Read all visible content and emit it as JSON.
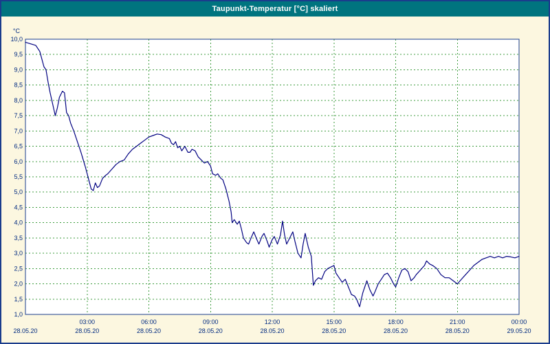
{
  "window": {
    "title": "Taupunkt-Temperatur [°C] skaliert",
    "titlebar_color": "#00747f",
    "background_color": "#fcf7e0",
    "border_color": "#1a3c8c"
  },
  "chart_data": {
    "type": "line",
    "title": "Taupunkt-Temperatur [°C] skaliert",
    "xlabel": "",
    "ylabel": "°C",
    "ylim": [
      1.0,
      10.0
    ],
    "ytick_step": 0.5,
    "yticks": [
      {
        "value": 10.0,
        "label": "10,0"
      },
      {
        "value": 9.5,
        "label": "9,5"
      },
      {
        "value": 9.0,
        "label": "9,0"
      },
      {
        "value": 8.5,
        "label": "8,5"
      },
      {
        "value": 8.0,
        "label": "8,0"
      },
      {
        "value": 7.5,
        "label": "7,5"
      },
      {
        "value": 7.0,
        "label": "7,0"
      },
      {
        "value": 6.5,
        "label": "6,5"
      },
      {
        "value": 6.0,
        "label": "6,0"
      },
      {
        "value": 5.5,
        "label": "5,5"
      },
      {
        "value": 5.0,
        "label": "5,0"
      },
      {
        "value": 4.5,
        "label": "4,5"
      },
      {
        "value": 4.0,
        "label": "4,0"
      },
      {
        "value": 3.5,
        "label": "3,5"
      },
      {
        "value": 3.0,
        "label": "3,0"
      },
      {
        "value": 2.5,
        "label": "2,5"
      },
      {
        "value": 2.0,
        "label": "2,0"
      },
      {
        "value": 1.5,
        "label": "1,5"
      },
      {
        "value": 1.0,
        "label": "1,0"
      }
    ],
    "xlim_hours": [
      0,
      24
    ],
    "xticks": [
      {
        "hour": 0,
        "time": "",
        "date": "28.05.20"
      },
      {
        "hour": 3,
        "time": "03:00",
        "date": "28.05.20"
      },
      {
        "hour": 6,
        "time": "06:00",
        "date": "28.05.20"
      },
      {
        "hour": 9,
        "time": "09:00",
        "date": "28.05.20"
      },
      {
        "hour": 12,
        "time": "12:00",
        "date": "28.05.20"
      },
      {
        "hour": 15,
        "time": "15:00",
        "date": "28.05.20"
      },
      {
        "hour": 18,
        "time": "18:00",
        "date": "28.05.20"
      },
      {
        "hour": 21,
        "time": "21:00",
        "date": "28.05.20"
      },
      {
        "hour": 24,
        "time": "00:00",
        "date": "29.05.20"
      }
    ],
    "grid": true,
    "legend": "none",
    "line_color": "#000080",
    "grid_color": "#3c9b3c",
    "axis_color": "#1a3c8c",
    "tick_text_color": "#002a80",
    "plot_background": "#ffffff",
    "series": [
      {
        "name": "Taupunkt-Temperatur",
        "unit": "°C",
        "points": [
          [
            0,
            9.9
          ],
          [
            0.25,
            9.85
          ],
          [
            0.5,
            9.8
          ],
          [
            0.7,
            9.6
          ],
          [
            0.9,
            9.1
          ],
          [
            1.0,
            9.0
          ],
          [
            1.1,
            8.6
          ],
          [
            1.2,
            8.25
          ],
          [
            1.35,
            7.8
          ],
          [
            1.45,
            7.5
          ],
          [
            1.55,
            7.75
          ],
          [
            1.65,
            8.1
          ],
          [
            1.8,
            8.3
          ],
          [
            1.9,
            8.25
          ],
          [
            2.0,
            7.6
          ],
          [
            2.1,
            7.5
          ],
          [
            2.2,
            7.25
          ],
          [
            2.35,
            7.0
          ],
          [
            2.5,
            6.7
          ],
          [
            2.7,
            6.3
          ],
          [
            2.9,
            5.85
          ],
          [
            3.0,
            5.6
          ],
          [
            3.1,
            5.35
          ],
          [
            3.2,
            5.1
          ],
          [
            3.3,
            5.05
          ],
          [
            3.4,
            5.3
          ],
          [
            3.5,
            5.15
          ],
          [
            3.6,
            5.2
          ],
          [
            3.75,
            5.45
          ],
          [
            3.9,
            5.55
          ],
          [
            4.0,
            5.6
          ],
          [
            4.2,
            5.75
          ],
          [
            4.4,
            5.9
          ],
          [
            4.6,
            6.0
          ],
          [
            4.8,
            6.05
          ],
          [
            5.0,
            6.25
          ],
          [
            5.2,
            6.4
          ],
          [
            5.4,
            6.5
          ],
          [
            5.6,
            6.6
          ],
          [
            5.8,
            6.7
          ],
          [
            6.0,
            6.8
          ],
          [
            6.2,
            6.85
          ],
          [
            6.4,
            6.9
          ],
          [
            6.6,
            6.88
          ],
          [
            6.8,
            6.8
          ],
          [
            7.0,
            6.75
          ],
          [
            7.1,
            6.6
          ],
          [
            7.2,
            6.55
          ],
          [
            7.3,
            6.65
          ],
          [
            7.4,
            6.45
          ],
          [
            7.5,
            6.5
          ],
          [
            7.6,
            6.35
          ],
          [
            7.75,
            6.5
          ],
          [
            7.9,
            6.3
          ],
          [
            8.0,
            6.3
          ],
          [
            8.1,
            6.4
          ],
          [
            8.25,
            6.35
          ],
          [
            8.4,
            6.15
          ],
          [
            8.55,
            6.05
          ],
          [
            8.7,
            5.95
          ],
          [
            8.85,
            6.0
          ],
          [
            9.0,
            5.85
          ],
          [
            9.1,
            5.6
          ],
          [
            9.25,
            5.55
          ],
          [
            9.35,
            5.6
          ],
          [
            9.5,
            5.45
          ],
          [
            9.6,
            5.4
          ],
          [
            9.75,
            5.1
          ],
          [
            9.9,
            4.7
          ],
          [
            10.0,
            4.35
          ],
          [
            10.05,
            4.0
          ],
          [
            10.15,
            4.1
          ],
          [
            10.3,
            3.95
          ],
          [
            10.4,
            4.05
          ],
          [
            10.5,
            3.8
          ],
          [
            10.6,
            3.5
          ],
          [
            10.75,
            3.35
          ],
          [
            10.85,
            3.3
          ],
          [
            11.0,
            3.55
          ],
          [
            11.1,
            3.7
          ],
          [
            11.25,
            3.45
          ],
          [
            11.35,
            3.3
          ],
          [
            11.5,
            3.55
          ],
          [
            11.6,
            3.65
          ],
          [
            11.75,
            3.4
          ],
          [
            11.85,
            3.2
          ],
          [
            12.0,
            3.45
          ],
          [
            12.1,
            3.55
          ],
          [
            12.25,
            3.3
          ],
          [
            12.4,
            3.6
          ],
          [
            12.5,
            4.05
          ],
          [
            12.6,
            3.6
          ],
          [
            12.7,
            3.3
          ],
          [
            12.85,
            3.5
          ],
          [
            13.0,
            3.7
          ],
          [
            13.1,
            3.4
          ],
          [
            13.25,
            3.0
          ],
          [
            13.4,
            2.85
          ],
          [
            13.5,
            3.3
          ],
          [
            13.6,
            3.65
          ],
          [
            13.75,
            3.2
          ],
          [
            13.9,
            2.9
          ],
          [
            14.0,
            1.95
          ],
          [
            14.1,
            2.1
          ],
          [
            14.25,
            2.2
          ],
          [
            14.4,
            2.15
          ],
          [
            14.55,
            2.4
          ],
          [
            14.7,
            2.5
          ],
          [
            14.85,
            2.55
          ],
          [
            15.0,
            2.6
          ],
          [
            15.1,
            2.35
          ],
          [
            15.25,
            2.2
          ],
          [
            15.4,
            2.05
          ],
          [
            15.55,
            2.15
          ],
          [
            15.7,
            1.9
          ],
          [
            15.85,
            1.65
          ],
          [
            16.0,
            1.6
          ],
          [
            16.1,
            1.5
          ],
          [
            16.25,
            1.25
          ],
          [
            16.4,
            1.7
          ],
          [
            16.5,
            1.9
          ],
          [
            16.6,
            2.1
          ],
          [
            16.75,
            1.8
          ],
          [
            16.9,
            1.6
          ],
          [
            17.0,
            1.75
          ],
          [
            17.15,
            2.0
          ],
          [
            17.3,
            2.15
          ],
          [
            17.45,
            2.3
          ],
          [
            17.6,
            2.35
          ],
          [
            17.75,
            2.2
          ],
          [
            17.9,
            2.0
          ],
          [
            18.0,
            1.9
          ],
          [
            18.15,
            2.2
          ],
          [
            18.3,
            2.45
          ],
          [
            18.45,
            2.5
          ],
          [
            18.6,
            2.4
          ],
          [
            18.75,
            2.1
          ],
          [
            18.9,
            2.2
          ],
          [
            19.0,
            2.3
          ],
          [
            19.2,
            2.45
          ],
          [
            19.4,
            2.6
          ],
          [
            19.5,
            2.75
          ],
          [
            19.65,
            2.65
          ],
          [
            19.8,
            2.6
          ],
          [
            20.0,
            2.5
          ],
          [
            20.2,
            2.3
          ],
          [
            20.4,
            2.2
          ],
          [
            20.6,
            2.2
          ],
          [
            20.8,
            2.1
          ],
          [
            21.0,
            2.0
          ],
          [
            21.2,
            2.15
          ],
          [
            21.4,
            2.3
          ],
          [
            21.6,
            2.45
          ],
          [
            21.8,
            2.6
          ],
          [
            22.0,
            2.7
          ],
          [
            22.2,
            2.8
          ],
          [
            22.4,
            2.85
          ],
          [
            22.6,
            2.9
          ],
          [
            22.8,
            2.85
          ],
          [
            23.0,
            2.9
          ],
          [
            23.2,
            2.85
          ],
          [
            23.4,
            2.9
          ],
          [
            23.6,
            2.88
          ],
          [
            23.8,
            2.85
          ],
          [
            24.0,
            2.9
          ]
        ]
      }
    ]
  }
}
